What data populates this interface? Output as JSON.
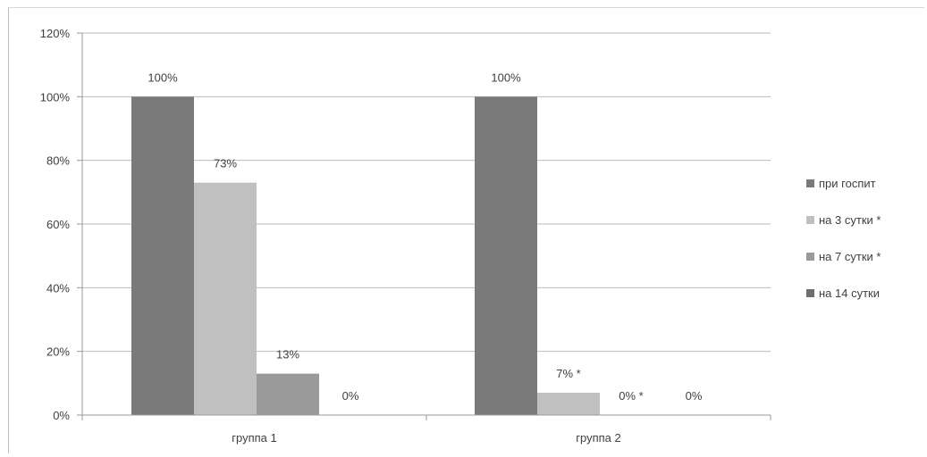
{
  "chart_data": {
    "type": "bar",
    "categories": [
      "группа 1",
      "группа 2"
    ],
    "series": [
      {
        "name": "при госпит",
        "color": "#7a7a7a",
        "values": [
          100,
          100
        ],
        "labels": [
          "100%",
          "100%"
        ]
      },
      {
        "name": "на 3 сутки *",
        "color": "#c0c0c0",
        "values": [
          73,
          7
        ],
        "labels": [
          "73%",
          "7%  *"
        ]
      },
      {
        "name": "на 7 сутки *",
        "color": "#9a9a9a",
        "values": [
          13,
          0
        ],
        "labels": [
          "13%",
          "0% *"
        ]
      },
      {
        "name": "на 14 сутки",
        "color": "#6e6e6e",
        "values": [
          0,
          0
        ],
        "labels": [
          "0%",
          "0%"
        ]
      }
    ],
    "yticks": [
      "0%",
      "20%",
      "40%",
      "60%",
      "80%",
      "100%",
      "120%"
    ],
    "ylim": [
      0,
      120
    ],
    "grid": true,
    "legend_position": "right",
    "title": "",
    "xlabel": "",
    "ylabel": ""
  }
}
